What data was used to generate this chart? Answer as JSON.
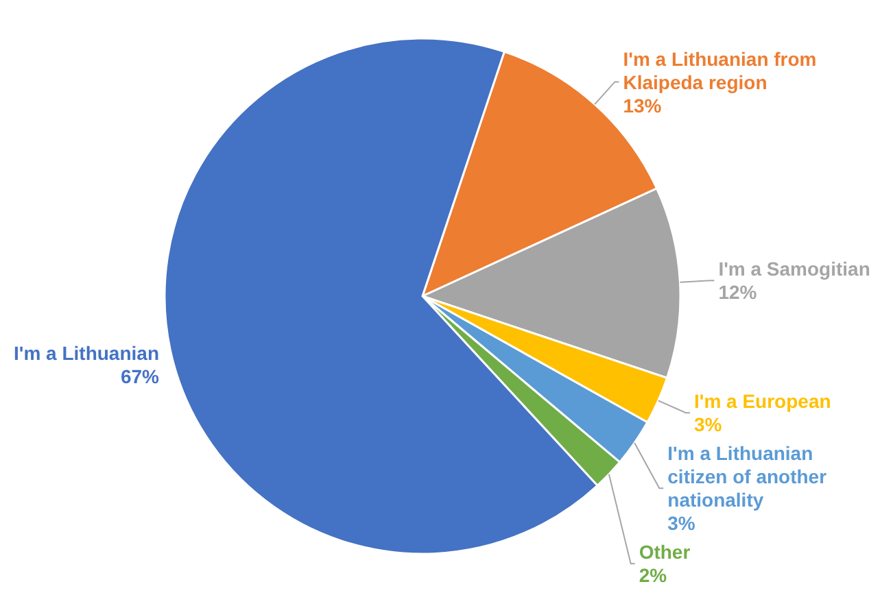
{
  "chart_data": {
    "type": "pie",
    "categories": [
      "I'm a Lithuanian from Klaipeda region",
      "I'm a Samogitian",
      "I'm a European",
      "I'm a Lithuanian citizen of another nationality",
      "Other",
      "I'm a Lithuanian"
    ],
    "values": [
      13,
      12,
      3,
      3,
      2,
      67
    ],
    "colors": [
      "#ed7d31",
      "#a5a5a5",
      "#ffc000",
      "#5b9bd5",
      "#70ad47",
      "#4472c4"
    ],
    "value_labels": [
      "13%",
      "12%",
      "3%",
      "3%",
      "2%",
      "67%"
    ]
  }
}
